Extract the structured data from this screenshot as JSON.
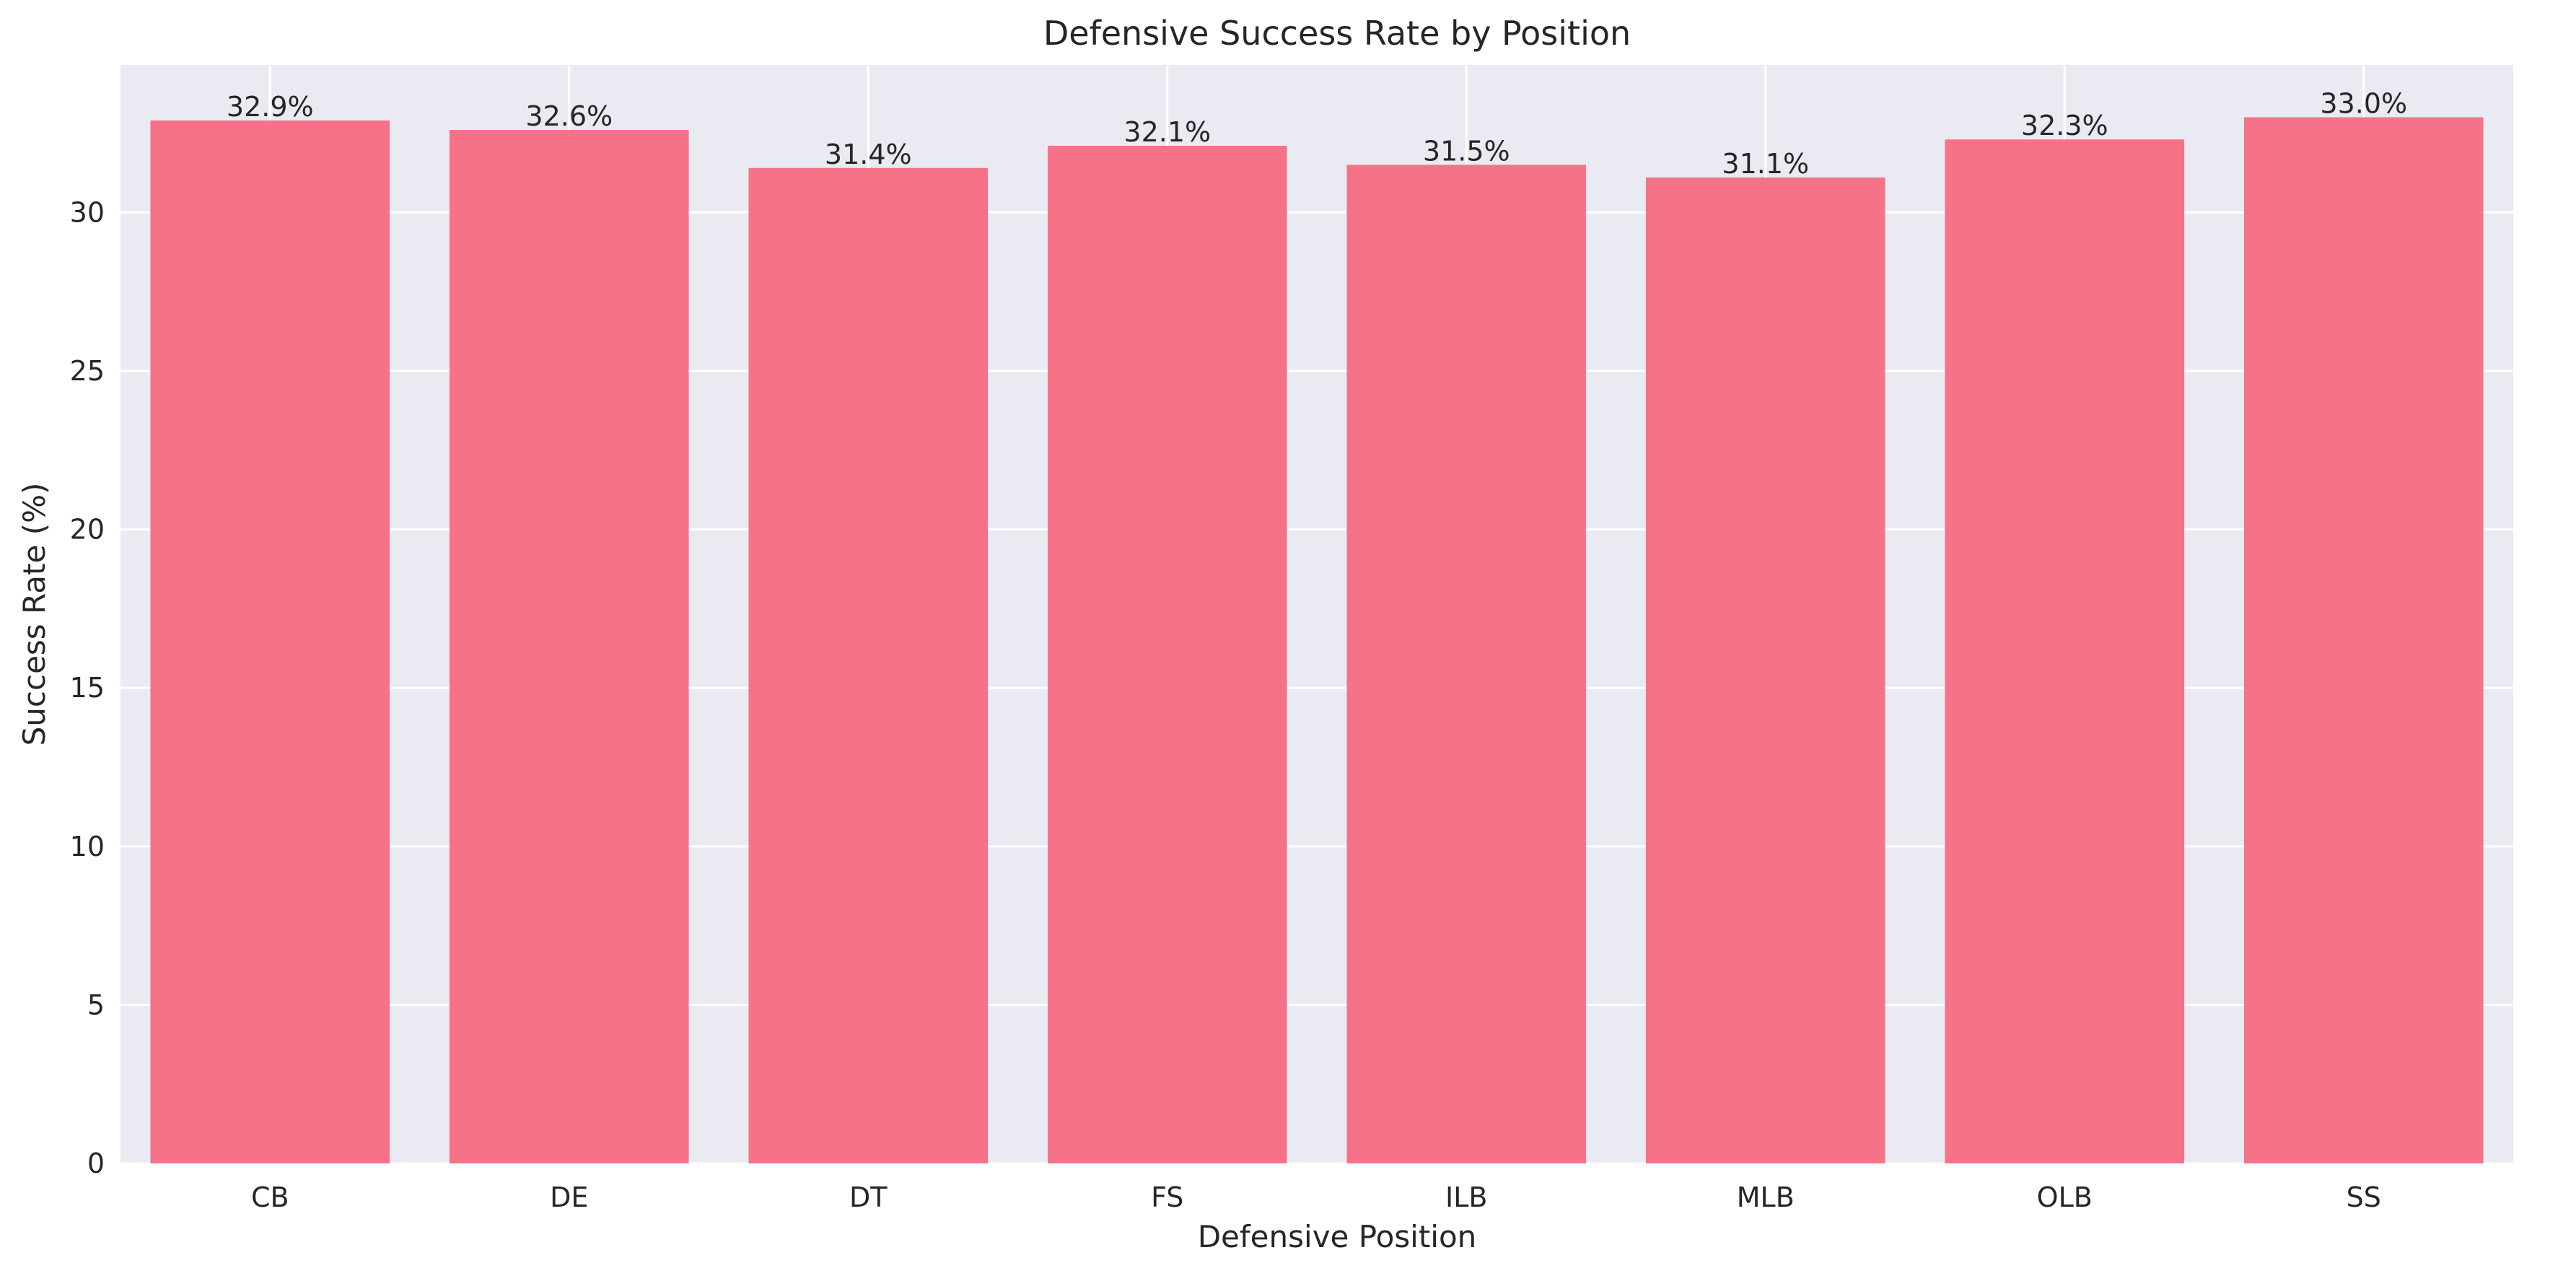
{
  "chart_data": {
    "type": "bar",
    "title": "Defensive Success Rate by Position",
    "xlabel": "Defensive Position",
    "ylabel": "Success Rate (%)",
    "categories": [
      "CB",
      "DE",
      "DT",
      "FS",
      "ILB",
      "MLB",
      "OLB",
      "SS"
    ],
    "values": [
      32.9,
      32.6,
      31.4,
      32.1,
      31.5,
      31.1,
      32.3,
      33.0
    ],
    "data_labels": [
      "32.9%",
      "32.6%",
      "31.4%",
      "32.1%",
      "31.5%",
      "31.1%",
      "32.3%",
      "33.0%"
    ],
    "yticks": [
      0,
      5,
      10,
      15,
      20,
      25,
      30
    ],
    "ylim": [
      0,
      34.65
    ],
    "grid": true,
    "colors": {
      "bar": "#f67289",
      "plot_background": "#eaeaf2",
      "grid": "#ffffff",
      "text": "#262626"
    }
  }
}
